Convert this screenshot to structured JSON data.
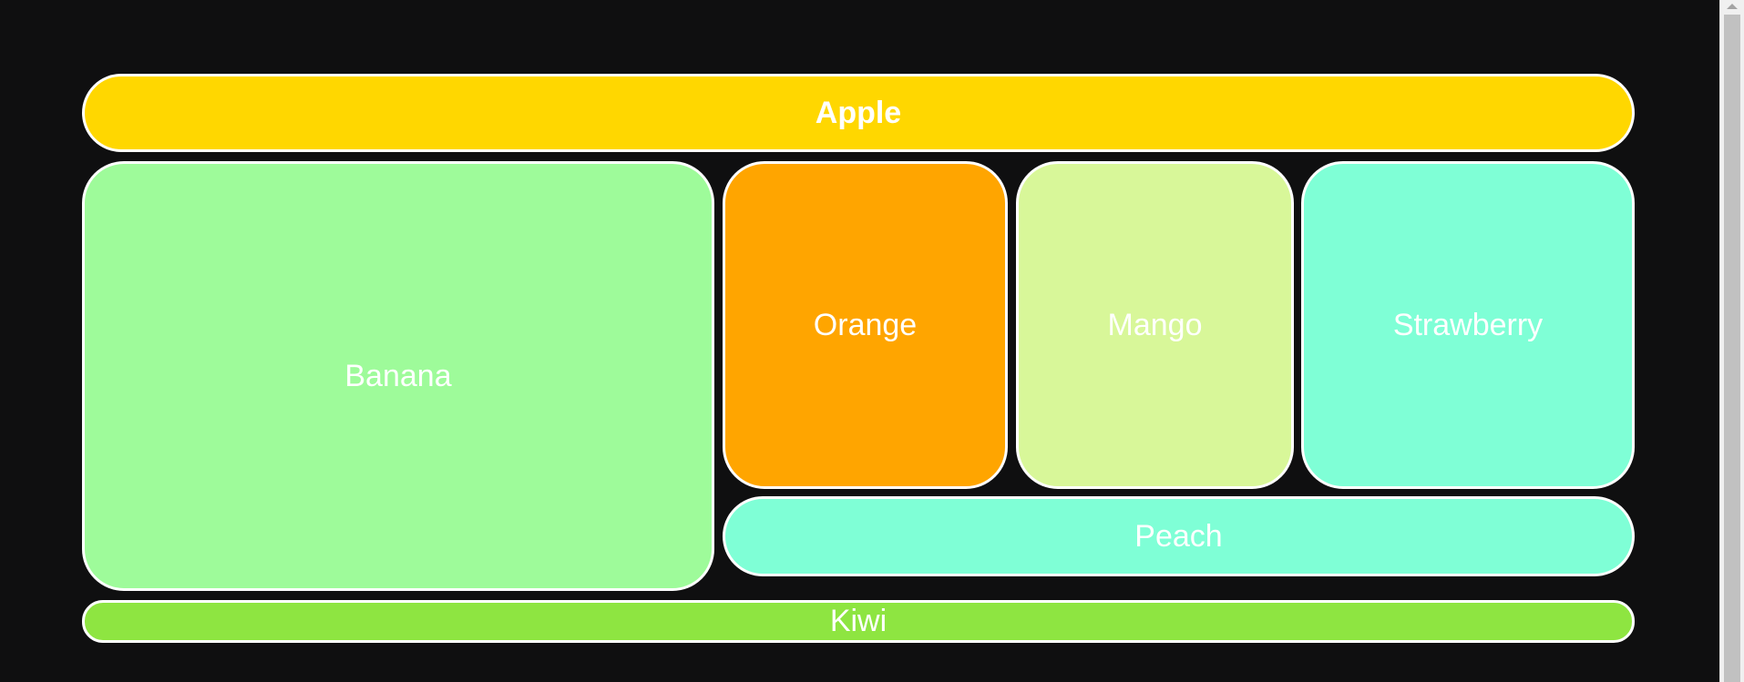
{
  "tiles": {
    "apple": {
      "label": "Apple",
      "color": "#FFD700"
    },
    "banana": {
      "label": "Banana",
      "color": "#9EFB9A"
    },
    "orange": {
      "label": "Orange",
      "color": "#FFA500"
    },
    "mango": {
      "label": "Mango",
      "color": "#D8F799"
    },
    "strawberry": {
      "label": "Strawberry",
      "color": "#7FFFD6"
    },
    "peach": {
      "label": "Peach",
      "color": "#7FFFD6"
    },
    "kiwi": {
      "label": "Kiwi",
      "color": "#8EE541"
    }
  }
}
